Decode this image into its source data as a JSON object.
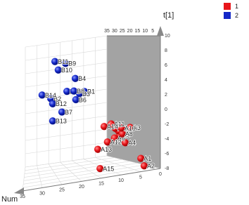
{
  "chart_data": {
    "type": "scatter3d",
    "x_label": "Num",
    "z_label": "t[1]",
    "xlim": [
      0,
      35
    ],
    "xticks": [
      0,
      5,
      10,
      15,
      20,
      25,
      30,
      35
    ],
    "ylim": [
      0,
      35
    ],
    "yticks": [
      0,
      5,
      10,
      15,
      20,
      25,
      30,
      35
    ],
    "zlim": [
      -8,
      10
    ],
    "zticks": [
      -8,
      -6,
      -4,
      -2,
      0,
      2,
      4,
      6,
      8,
      10
    ],
    "grid": true,
    "legend": "top-right",
    "series": [
      {
        "name": "1",
        "color": "#e8161b",
        "labels": [
          "A1",
          "A2",
          "A3",
          "A4",
          "A5",
          "A6",
          "A7",
          "A8",
          "A9",
          "A10",
          "A11",
          "A12",
          "A13",
          "A14",
          "A15"
        ],
        "x": [
          3.2,
          2.3,
          6.1,
          7.4,
          8.9,
          10.3,
          9.3,
          8.2,
          10.1,
          8.4,
          11.2,
          12.2,
          14.8,
          13.1,
          14.2
        ],
        "y": [
          5,
          5,
          5,
          5,
          5,
          5,
          5,
          5,
          5,
          5,
          5,
          5,
          5,
          5,
          5
        ],
        "z": [
          -6.6,
          -7.7,
          -2.1,
          -4.1,
          -2.9,
          -3.2,
          -2.3,
          -2.8,
          -1.9,
          -2.0,
          -1.2,
          -3.6,
          -4.4,
          -1.4,
          -7.1
        ]
      },
      {
        "name": "2",
        "color": "#1428c8",
        "labels": [
          "B1",
          "B2",
          "B3",
          "B4",
          "B5",
          "B6",
          "B7",
          "B8",
          "B9",
          "B10",
          "B11",
          "B12",
          "B13",
          "B14"
        ],
        "x": [
          13.5,
          25.6,
          15.3,
          16.8,
          19.8,
          16.6,
          21.6,
          17.3,
          20.3,
          22.9,
          24.1,
          24.9,
          24.9,
          28.7
        ],
        "y": [
          25,
          25,
          25,
          25,
          25,
          25,
          25,
          25,
          25,
          25,
          25,
          25,
          25,
          25
        ],
        "z": [
          2.7,
          2.4,
          2.5,
          4.8,
          3.1,
          1.7,
          0.2,
          3.0,
          7.2,
          6.4,
          7.7,
          1.6,
          -0.9,
          3.1
        ]
      }
    ]
  }
}
